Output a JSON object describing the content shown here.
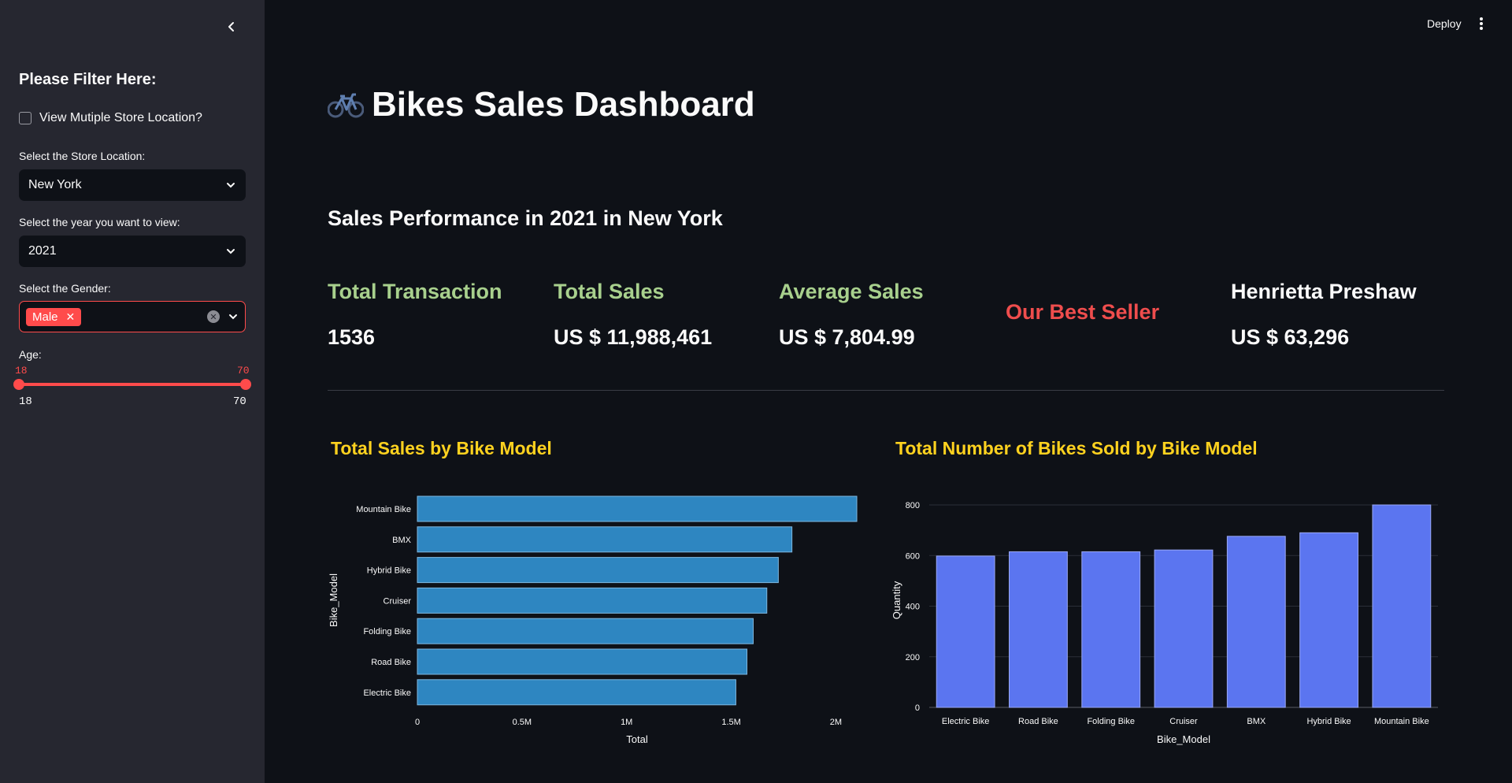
{
  "sidebar": {
    "title": "Please Filter Here:",
    "checkbox_label": "View Mutiple Store Location?",
    "store_label": "Select the Store Location:",
    "store_value": "New York",
    "year_label": "Select the year you want to view:",
    "year_value": "2021",
    "gender_label": "Select the Gender:",
    "gender_tag": "Male",
    "age_label": "Age:",
    "age_min_value": "18",
    "age_max_value": "70",
    "age_min": "18",
    "age_max": "70"
  },
  "header": {
    "deploy": "Deploy"
  },
  "main": {
    "title": "Bikes Sales Dashboard",
    "subtitle": "Sales Performance in 2021 in New York",
    "metrics": {
      "transaction_label": "Total Transaction",
      "transaction_value": "1536",
      "sales_label": "Total Sales",
      "sales_value": "US $ 11,988,461",
      "avg_label": "Average Sales",
      "avg_value": "US $ 7,804.99",
      "best_label": "Our Best Seller",
      "best_name": "Henrietta Preshaw",
      "best_value": "US $ 63,296"
    }
  },
  "colors": {
    "accent": "#ff4b4b",
    "green": "#a8d08d",
    "yellow": "#ffd21f",
    "bar_left": "#2e86c1",
    "bar_right": "#5b75f0"
  },
  "chart_data": [
    {
      "type": "bar",
      "orientation": "horizontal",
      "title": "Total Sales by Bike Model",
      "xlabel": "Total",
      "ylabel": "Bike_Model",
      "categories": [
        "Mountain Bike",
        "BMX",
        "Hybrid Bike",
        "Cruiser",
        "Folding Bike",
        "Road Bike",
        "Electric Bike"
      ],
      "values": [
        2100000,
        1790000,
        1725000,
        1670000,
        1605000,
        1575000,
        1522000
      ],
      "xlim": [
        0,
        2100000
      ],
      "xticks": [
        0,
        500000,
        1000000,
        1500000,
        2000000
      ],
      "xtick_labels": [
        "0",
        "0.5M",
        "1M",
        "1.5M",
        "2M"
      ]
    },
    {
      "type": "bar",
      "orientation": "vertical",
      "title": "Total Number of Bikes Sold by Bike Model",
      "xlabel": "Bike_Model",
      "ylabel": "Quantity",
      "categories": [
        "Electric Bike",
        "Road Bike",
        "Folding Bike",
        "Cruiser",
        "BMX",
        "Hybrid Bike",
        "Mountain Bike"
      ],
      "values": [
        598,
        615,
        615,
        622,
        676,
        690,
        800
      ],
      "ylim": [
        0,
        800
      ],
      "yticks": [
        0,
        200,
        400,
        600,
        800
      ],
      "ytick_labels": [
        "0",
        "200",
        "400",
        "600",
        "800"
      ]
    }
  ]
}
